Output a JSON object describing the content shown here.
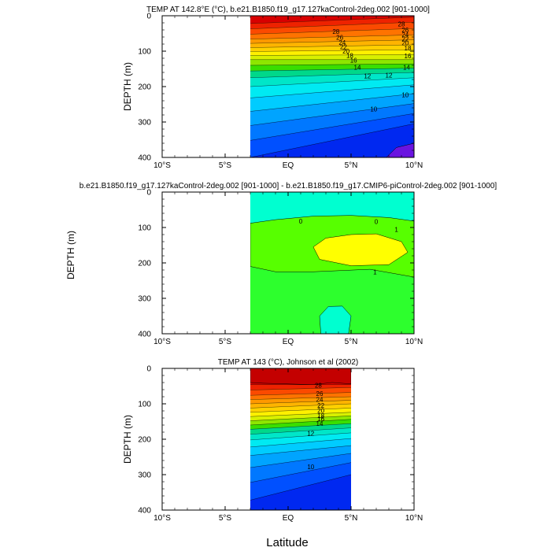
{
  "figure": {
    "xlabel": "Latitude",
    "ylabel_side": "DEPTH (m)"
  },
  "chart_data": [
    {
      "type": "heatmap",
      "title": "TEMP AT 142.8°E (°C), b.e21.B1850.f19_g17.127kaControl-2deg.002 [901-1000]",
      "ylabel": "DEPTH (m)",
      "xlim": [
        -10,
        10
      ],
      "ylim": [
        400,
        0
      ],
      "x_data_range": [
        -3,
        10
      ],
      "x_ticks": [
        -10,
        -5,
        0,
        5,
        10
      ],
      "x_tick_labels": [
        "10°S",
        "5°S",
        "EQ",
        "5°N",
        "10°N"
      ],
      "y_ticks": [
        0,
        100,
        200,
        300,
        400
      ],
      "y_tick_labels": [
        "0",
        "100",
        "200",
        "300",
        "400"
      ],
      "bands": [
        {
          "top": [
            0,
            0
          ],
          "bottom": [
            22,
            4
          ],
          "color": "#d80000"
        },
        {
          "top": [
            22,
            4
          ],
          "bottom": [
            37,
            18
          ],
          "color": "#ee2200"
        },
        {
          "top": [
            37,
            18
          ],
          "bottom": [
            52,
            36
          ],
          "color": "#fb4a00"
        },
        {
          "top": [
            52,
            36
          ],
          "bottom": [
            66,
            54
          ],
          "color": "#ff7300"
        },
        {
          "top": [
            66,
            54
          ],
          "bottom": [
            78,
            68
          ],
          "color": "#ff9800"
        },
        {
          "top": [
            78,
            68
          ],
          "bottom": [
            90,
            82
          ],
          "color": "#ffb400"
        },
        {
          "top": [
            90,
            82
          ],
          "bottom": [
            101,
            96
          ],
          "color": "#ffd000"
        },
        {
          "top": [
            101,
            96
          ],
          "bottom": [
            112,
            110
          ],
          "color": "#fff000"
        },
        {
          "top": [
            112,
            110
          ],
          "bottom": [
            124,
            124
          ],
          "color": "#d8f000"
        },
        {
          "top": [
            124,
            124
          ],
          "bottom": [
            140,
            136
          ],
          "color": "#8ee600"
        },
        {
          "top": [
            140,
            136
          ],
          "bottom": [
            156,
            148
          ],
          "color": "#3ade00"
        },
        {
          "top": [
            156,
            148
          ],
          "bottom": [
            175,
            160
          ],
          "color": "#00d88a"
        },
        {
          "top": [
            175,
            160
          ],
          "bottom": [
            200,
            175
          ],
          "color": "#00e6c8"
        },
        {
          "top": [
            200,
            175
          ],
          "bottom": [
            232,
            195
          ],
          "color": "#00eaf2"
        },
        {
          "top": [
            232,
            195
          ],
          "bottom": [
            270,
            220
          ],
          "color": "#00ccff"
        },
        {
          "top": [
            270,
            220
          ],
          "bottom": [
            310,
            248
          ],
          "color": "#00a4ff"
        },
        {
          "top": [
            310,
            248
          ],
          "bottom": [
            352,
            276
          ],
          "color": "#0078ff"
        },
        {
          "top": [
            352,
            276
          ],
          "bottom": [
            400,
            305
          ],
          "color": "#0050ff"
        },
        {
          "top": [
            400,
            305
          ],
          "bottom": [
            400,
            400
          ],
          "color": "#0028f0"
        }
      ],
      "extra_patches": [
        {
          "points": [
            [
              7.8,
              400
            ],
            [
              8.6,
              372
            ],
            [
              10,
              360
            ],
            [
              10,
              400
            ]
          ],
          "color": "#6a14e0"
        }
      ],
      "contour_labels": [
        {
          "text": "28",
          "x": 3.8,
          "y": 46
        },
        {
          "text": "26",
          "x": 4.1,
          "y": 63
        },
        {
          "text": "24",
          "x": 4.3,
          "y": 78
        },
        {
          "text": "22",
          "x": 4.4,
          "y": 90
        },
        {
          "text": "20",
          "x": 4.6,
          "y": 102
        },
        {
          "text": "18",
          "x": 4.9,
          "y": 114
        },
        {
          "text": "16",
          "x": 5.2,
          "y": 128
        },
        {
          "text": "14",
          "x": 5.5,
          "y": 148
        },
        {
          "text": "12",
          "x": 6.3,
          "y": 172
        },
        {
          "text": "10",
          "x": 6.8,
          "y": 265
        },
        {
          "text": "28",
          "x": 9.0,
          "y": 25
        },
        {
          "text": "26",
          "x": 9.3,
          "y": 42
        },
        {
          "text": "24",
          "x": 9.3,
          "y": 55
        },
        {
          "text": "22",
          "x": 9.3,
          "y": 67
        },
        {
          "text": "20",
          "x": 9.3,
          "y": 79
        },
        {
          "text": "18",
          "x": 9.5,
          "y": 93
        },
        {
          "text": "16",
          "x": 9.5,
          "y": 115
        },
        {
          "text": "14",
          "x": 9.4,
          "y": 148
        },
        {
          "text": "12",
          "x": 8.0,
          "y": 170
        },
        {
          "text": "10",
          "x": 9.3,
          "y": 225
        }
      ]
    },
    {
      "type": "heatmap",
      "title": "b.e21.B1850.f19_g17.127kaControl-2deg.002 [901-1000] - b.e21.B1850.f19_g17.CMIP6-piControl-2deg.002 [901-1000]",
      "ylabel": "DEPTH (m)",
      "xlim": [
        -10,
        10
      ],
      "ylim": [
        400,
        0
      ],
      "x_data_range": [
        -3,
        10
      ],
      "x_ticks": [
        -10,
        -5,
        0,
        5,
        10
      ],
      "x_tick_labels": [
        "10°S",
        "5°S",
        "EQ",
        "5°N",
        "10°N"
      ],
      "y_ticks": [
        0,
        100,
        200,
        300,
        400
      ],
      "y_tick_labels": [
        "0",
        "100",
        "200",
        "300",
        "400"
      ],
      "bands": [
        {
          "top": [
            0,
            0
          ],
          "bottom": [
            88,
            82
          ],
          "color": "#00ffd0"
        },
        {
          "top": [
            88,
            82
          ],
          "bottom": [
            400,
            400
          ],
          "color": "#2dff2d"
        }
      ],
      "extra_patches": [
        {
          "points": [
            [
              -3,
              88
            ],
            [
              -1,
              78
            ],
            [
              2,
              68
            ],
            [
              5,
              66
            ],
            [
              8,
              72
            ],
            [
              10,
              82
            ],
            [
              10,
              240
            ],
            [
              6.5,
              218
            ],
            [
              2,
              225
            ],
            [
              -1,
              225
            ],
            [
              -3,
              210
            ]
          ],
          "color": "#57ff00"
        },
        {
          "points": [
            [
              2,
              155
            ],
            [
              3,
              130
            ],
            [
              5,
              120
            ],
            [
              7,
              118
            ],
            [
              9,
              140
            ],
            [
              9.5,
              170
            ],
            [
              8,
              205
            ],
            [
              5,
              208
            ],
            [
              2.5,
              190
            ]
          ],
          "color": "#ffff00"
        },
        {
          "points": [
            [
              2.6,
              400
            ],
            [
              2.5,
              350
            ],
            [
              3.2,
              323
            ],
            [
              4.3,
              322
            ],
            [
              5,
              350
            ],
            [
              4.8,
              400
            ]
          ],
          "color": "#00ffd0"
        }
      ],
      "contour_labels": [
        {
          "text": "0",
          "x": 1.0,
          "y": 84
        },
        {
          "text": "0",
          "x": 7.0,
          "y": 85
        },
        {
          "text": "1",
          "x": 8.6,
          "y": 108
        },
        {
          "text": "1",
          "x": 6.9,
          "y": 228
        },
        {
          "text": "1",
          "x": 11.6,
          "y": 191
        }
      ]
    },
    {
      "type": "heatmap",
      "title": "TEMP AT 143 (°C), Johnson et al (2002)",
      "ylabel": "DEPTH (m)",
      "xlim": [
        -10,
        10
      ],
      "ylim": [
        400,
        0
      ],
      "x_data_range": [
        -3,
        5
      ],
      "x_ticks": [
        -10,
        -5,
        0,
        5,
        10
      ],
      "x_tick_labels": [
        "10°S",
        "5°S",
        "EQ",
        "5°N",
        "10°N"
      ],
      "y_ticks": [
        0,
        100,
        200,
        300,
        400
      ],
      "y_tick_labels": [
        "0",
        "100",
        "200",
        "300",
        "400"
      ],
      "bands": [
        {
          "top": [
            0,
            0
          ],
          "bottom": [
            46,
            46
          ],
          "color": "#d80000"
        },
        {
          "top": [
            46,
            46
          ],
          "bottom": [
            61,
            54
          ],
          "color": "#ee2200"
        },
        {
          "top": [
            61,
            54
          ],
          "bottom": [
            76,
            68
          ],
          "color": "#fb4a00"
        },
        {
          "top": [
            76,
            68
          ],
          "bottom": [
            88,
            80
          ],
          "color": "#ff7300"
        },
        {
          "top": [
            88,
            80
          ],
          "bottom": [
            100,
            90
          ],
          "color": "#ff9800"
        },
        {
          "top": [
            100,
            90
          ],
          "bottom": [
            112,
            100
          ],
          "color": "#ffb400"
        },
        {
          "top": [
            112,
            100
          ],
          "bottom": [
            124,
            112
          ],
          "color": "#ffd000"
        },
        {
          "top": [
            124,
            112
          ],
          "bottom": [
            136,
            124
          ],
          "color": "#fff000"
        },
        {
          "top": [
            136,
            124
          ],
          "bottom": [
            148,
            134
          ],
          "color": "#d8f000"
        },
        {
          "top": [
            148,
            134
          ],
          "bottom": [
            160,
            144
          ],
          "color": "#8ee600"
        },
        {
          "top": [
            160,
            144
          ],
          "bottom": [
            172,
            156
          ],
          "color": "#3ade00"
        },
        {
          "top": [
            172,
            156
          ],
          "bottom": [
            186,
            168
          ],
          "color": "#00d88a"
        },
        {
          "top": [
            186,
            168
          ],
          "bottom": [
            202,
            182
          ],
          "color": "#00e6c8"
        },
        {
          "top": [
            202,
            182
          ],
          "bottom": [
            222,
            198
          ],
          "color": "#00eaf2"
        },
        {
          "top": [
            222,
            198
          ],
          "bottom": [
            246,
            218
          ],
          "color": "#00ccff"
        },
        {
          "top": [
            246,
            218
          ],
          "bottom": [
            280,
            240
          ],
          "color": "#00a4ff"
        },
        {
          "top": [
            280,
            240
          ],
          "bottom": [
            322,
            266
          ],
          "color": "#0078ff"
        },
        {
          "top": [
            322,
            266
          ],
          "bottom": [
            372,
            300
          ],
          "color": "#0050ff"
        },
        {
          "top": [
            372,
            300
          ],
          "bottom": [
            400,
            400
          ],
          "color": "#0028f0"
        }
      ],
      "extra_patches": [
        {
          "points": [
            [
              -3,
              0
            ],
            [
              5,
              0
            ],
            [
              5,
              44
            ],
            [
              3.5,
              40
            ],
            [
              2,
              46
            ],
            [
              0,
              44
            ],
            [
              -2,
              42
            ],
            [
              -3,
              40
            ]
          ],
          "color": "#c40000"
        }
      ],
      "contour_labels": [
        {
          "text": "28",
          "x": 2.4,
          "y": 50
        },
        {
          "text": "26",
          "x": 2.5,
          "y": 73
        },
        {
          "text": "24",
          "x": 2.5,
          "y": 90
        },
        {
          "text": "22",
          "x": 2.6,
          "y": 106
        },
        {
          "text": "20",
          "x": 2.6,
          "y": 121
        },
        {
          "text": "18",
          "x": 2.6,
          "y": 135
        },
        {
          "text": "16",
          "x": 2.6,
          "y": 144
        },
        {
          "text": "14",
          "x": 2.5,
          "y": 158
        },
        {
          "text": "12",
          "x": 1.8,
          "y": 185
        },
        {
          "text": "10",
          "x": 1.8,
          "y": 280
        }
      ]
    }
  ]
}
